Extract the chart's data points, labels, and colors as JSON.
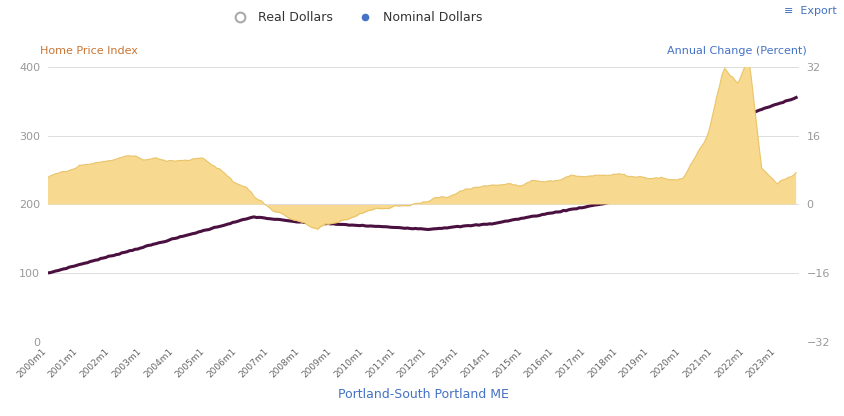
{
  "title": "",
  "xlabel": "Portland-South Portland ME",
  "ylabel_left": "Home Price Index",
  "ylabel_right": "Annual Change (Percent)",
  "left_ylim": [
    0,
    400
  ],
  "right_ylim": [
    -32,
    32
  ],
  "left_yticks": [
    0,
    100,
    200,
    300,
    400
  ],
  "right_yticks": [
    -32,
    -16,
    0,
    16,
    32
  ],
  "line_color": "#4a1040",
  "fill_color": "#f7d98f",
  "fill_edge_color": "#e8c060",
  "background_color": "#ffffff",
  "grid_color": "#d8d8d8",
  "left_label_color": "#c87533",
  "right_label_color": "#4472c4",
  "xlabel_color": "#4472c4",
  "export_color": "#4472c4"
}
